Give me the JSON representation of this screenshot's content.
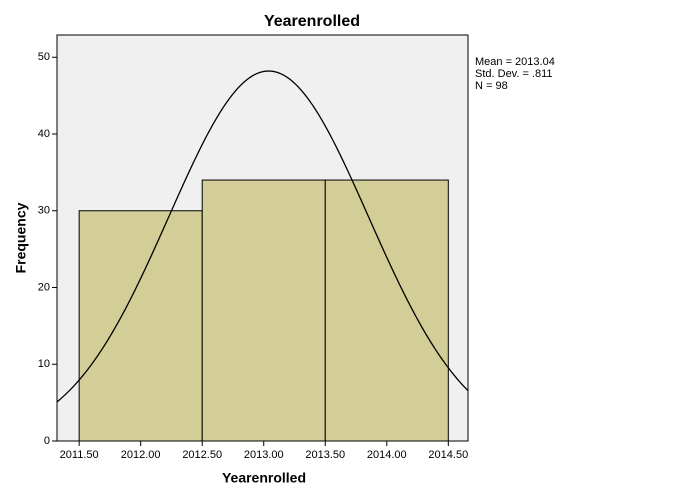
{
  "chart_data": {
    "type": "histogram",
    "title": "Yearenrolled",
    "x_label": "Yearenrolled",
    "y_label": "Frequency",
    "bins": [
      2011.5,
      2012.5,
      2013.5,
      2014.5
    ],
    "values": [
      30,
      34,
      34
    ],
    "color": "#d3ce97",
    "xlim": [
      2011.32,
      2014.66
    ],
    "ylim": [
      0,
      52.9
    ],
    "xticks": [
      {
        "value": 2011.5,
        "label": "2011.50"
      },
      {
        "value": 2012,
        "label": "2012.00"
      },
      {
        "value": 2012.5,
        "label": "2012.50"
      },
      {
        "value": 2013,
        "label": "2013.00"
      },
      {
        "value": 2013.5,
        "label": "2013.50"
      },
      {
        "value": 2014,
        "label": "2014.00"
      },
      {
        "value": 2014.5,
        "label": "2014.50"
      }
    ],
    "yticks": [
      0,
      10,
      20,
      30,
      40,
      50
    ],
    "normal_curve": {
      "mean": {
        "value": 2013.04,
        "label": "Mean = 2013.04"
      },
      "std_dev": {
        "value": 0.811,
        "label": "Std. Dev. = .811"
      },
      "n": {
        "value": 98,
        "label": "N = 98"
      }
    }
  }
}
